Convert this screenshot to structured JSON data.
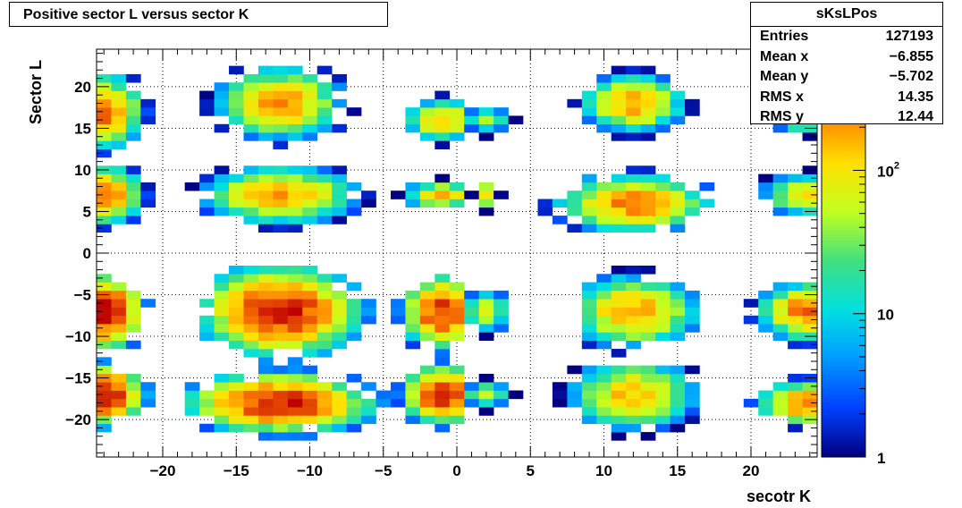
{
  "chart_data": {
    "type": "heatmap",
    "title": "Positive sector L versus sector K",
    "xlabel": "secotr K",
    "ylabel": "Sector L",
    "xlim": [
      -24.5,
      24.5
    ],
    "ylim": [
      -24.5,
      24.5
    ],
    "bin_width": 1,
    "x_ticks": [
      "−20",
      "−15",
      "−10",
      "−5",
      "0",
      "5",
      "10",
      "15",
      "20"
    ],
    "x_tick_values": [
      -20,
      -15,
      -10,
      -5,
      0,
      5,
      10,
      15,
      20
    ],
    "y_ticks": [
      "20",
      "15",
      "10",
      "5",
      "0",
      "−5",
      "−10",
      "−15",
      "−20"
    ],
    "y_tick_values": [
      20,
      15,
      10,
      5,
      0,
      -5,
      -10,
      -15,
      -20
    ],
    "z_scale": "log",
    "z_range": [
      1,
      700
    ],
    "z_ticks": [
      {
        "label": "1",
        "value": 1
      },
      {
        "label": "10",
        "value": 10
      },
      {
        "label": "10",
        "sup": "2",
        "value": 100
      }
    ],
    "grid": true,
    "stats": {
      "name": "sKsLPos",
      "rows": [
        {
          "label": "Entries",
          "value": "127193"
        },
        {
          "label": "Mean x",
          "value": "−6.855"
        },
        {
          "label": "Mean y",
          "value": "−5.702"
        },
        {
          "label": "RMS x",
          "value": "14.35"
        },
        {
          "label": "RMS y",
          "value": "12.44"
        }
      ]
    },
    "blobs": [
      {
        "x": [
          -24,
          -21
        ],
        "y": [
          12,
          21
        ],
        "cx": -24,
        "cy": 17,
        "peak": 300
      },
      {
        "x": [
          -24,
          -21
        ],
        "y": [
          3,
          11
        ],
        "cx": -24,
        "cy": 7,
        "peak": 300
      },
      {
        "x": [
          -24,
          -21
        ],
        "y": [
          -12,
          -3
        ],
        "cx": -24,
        "cy": -7,
        "peak": 700
      },
      {
        "x": [
          -24,
          -21
        ],
        "y": [
          -21,
          -13
        ],
        "cx": -24,
        "cy": -17,
        "peak": 700
      },
      {
        "x": [
          -17,
          -7
        ],
        "y": [
          13,
          22
        ],
        "cx": -12,
        "cy": 18,
        "peak": 200
      },
      {
        "x": [
          -18,
          -6
        ],
        "y": [
          3,
          10
        ],
        "cx": -12,
        "cy": 7,
        "peak": 200
      },
      {
        "x": [
          -17,
          -6
        ],
        "y": [
          -13,
          -2
        ],
        "cx": -12,
        "cy": -7,
        "peak": 600
      },
      {
        "x": [
          -18,
          -5
        ],
        "y": [
          -22,
          -14
        ],
        "cx": -12,
        "cy": -18,
        "peak": 600
      },
      {
        "x": [
          -4,
          0
        ],
        "y": [
          13,
          19
        ],
        "cx": -1,
        "cy": 16,
        "peak": 150
      },
      {
        "x": [
          -4,
          0
        ],
        "y": [
          5,
          9
        ],
        "cx": -1,
        "cy": 7,
        "peak": 150
      },
      {
        "x": [
          -4,
          0
        ],
        "y": [
          -12,
          -3
        ],
        "cx": -1,
        "cy": -7,
        "peak": 500
      },
      {
        "x": [
          -4,
          0
        ],
        "y": [
          -21,
          -13
        ],
        "cx": -1,
        "cy": -17,
        "peak": 500
      },
      {
        "x": [
          1,
          4
        ],
        "y": [
          14,
          17
        ],
        "cx": 2,
        "cy": 16,
        "peak": 40
      },
      {
        "x": [
          1,
          3
        ],
        "y": [
          5,
          9
        ],
        "cx": 2,
        "cy": 7,
        "peak": 120
      },
      {
        "x": [
          1,
          4
        ],
        "y": [
          -10,
          -5
        ],
        "cx": 2,
        "cy": -7,
        "peak": 80
      },
      {
        "x": [
          1,
          4
        ],
        "y": [
          -19,
          -15
        ],
        "cx": 2,
        "cy": -17,
        "peak": 60
      },
      {
        "x": [
          8,
          16
        ],
        "y": [
          14,
          22
        ],
        "cx": 12,
        "cy": 18,
        "peak": 200
      },
      {
        "x": [
          6,
          17
        ],
        "y": [
          3,
          10
        ],
        "cx": 12,
        "cy": 6,
        "peak": 250
      },
      {
        "x": [
          9,
          17
        ],
        "y": [
          -12,
          -2
        ],
        "cx": 12,
        "cy": -7,
        "peak": 200
      },
      {
        "x": [
          7,
          16
        ],
        "y": [
          -22,
          -14
        ],
        "cx": 12,
        "cy": -17,
        "peak": 150
      },
      {
        "x": [
          21,
          24
        ],
        "y": [
          14,
          17
        ],
        "cx": 24,
        "cy": 16,
        "peak": 80
      },
      {
        "x": [
          20,
          24
        ],
        "y": [
          5,
          10
        ],
        "cx": 24,
        "cy": 7,
        "peak": 120
      },
      {
        "x": [
          20,
          24
        ],
        "y": [
          -11,
          -4
        ],
        "cx": 24,
        "cy": -7,
        "peak": 300
      },
      {
        "x": [
          20,
          24
        ],
        "y": [
          -21,
          -15
        ],
        "cx": 24,
        "cy": -18,
        "peak": 300
      }
    ]
  }
}
